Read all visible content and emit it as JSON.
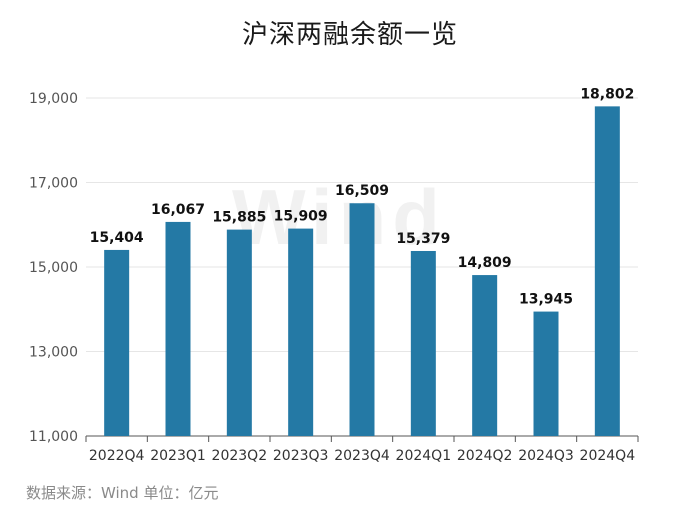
{
  "chart_data": {
    "type": "bar",
    "title": "沪深两融余额一览",
    "categories": [
      "2022Q4",
      "2023Q1",
      "2023Q2",
      "2023Q3",
      "2023Q4",
      "2024Q1",
      "2024Q2",
      "2024Q3",
      "2024Q4"
    ],
    "values": [
      15404,
      16067,
      15885,
      15909,
      16509,
      15379,
      14809,
      13945,
      18802
    ],
    "value_labels": [
      "15,404",
      "16,067",
      "15,885",
      "15,909",
      "16,509",
      "15,379",
      "14,809",
      "13,945",
      "18,802"
    ],
    "ylim": [
      11000,
      19000
    ],
    "yticks": [
      11000,
      13000,
      15000,
      17000,
      19000
    ],
    "ytick_labels": [
      "11,000",
      "13,000",
      "15,000",
      "17,000",
      "19,000"
    ],
    "grid": true,
    "bar_color": "#2479a5",
    "grid_color": "#e6e6e6"
  },
  "source_note": "数据来源：Wind 单位：亿元",
  "watermark": "Wind"
}
